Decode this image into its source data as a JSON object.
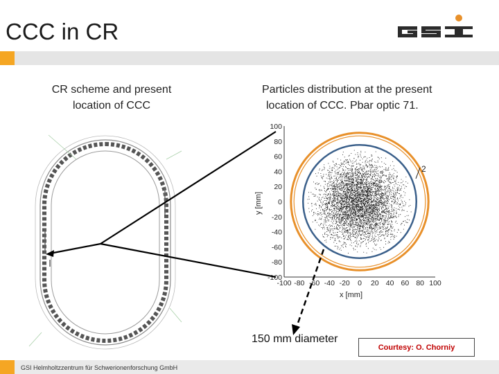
{
  "slide": {
    "title": "CCC in CR",
    "left_caption_line1": "CR scheme and present",
    "left_caption_line2": "location of CCC",
    "right_caption_line1": "Particles distribution at the present",
    "right_caption_line2": "location of CCC. Pbar optic 71.",
    "diameter_label": "150 mm diameter",
    "courtesy": "Courtesy: O. Chorniy",
    "footer": "GSI Helmholtzzentrum für Schwerionenforschung GmbH",
    "logo_text": "GSI"
  },
  "colors": {
    "accent": "#f5a623",
    "bar": "#e5e5e5",
    "courtesy_text": "#c00000",
    "ring_orange": "#e8902a",
    "ring_blue": "#3a5f8a"
  },
  "chart_data": {
    "type": "scatter",
    "title": "",
    "xlabel": "x [mm]",
    "ylabel": "y [mm]",
    "xlim": [
      -100,
      100
    ],
    "ylim": [
      -100,
      100
    ],
    "x_ticks": [
      "-100",
      "-80",
      "-60",
      "-40",
      "-20",
      "0",
      "20",
      "40",
      "60",
      "80",
      "100"
    ],
    "y_ticks": [
      "100",
      "80",
      "60",
      "40",
      "20",
      "0",
      "-20",
      "-40",
      "-60",
      "-80",
      "-100"
    ],
    "annotation": "2",
    "particle_cloud": {
      "center": [
        0,
        0
      ],
      "radius_mm": 70,
      "core_density": "high"
    },
    "circles": [
      {
        "name": "aperture",
        "radius_mm": 91,
        "color": "#e8902a"
      },
      {
        "name": "ccc",
        "radius_mm": 75,
        "color": "#3a5f8a"
      }
    ]
  }
}
